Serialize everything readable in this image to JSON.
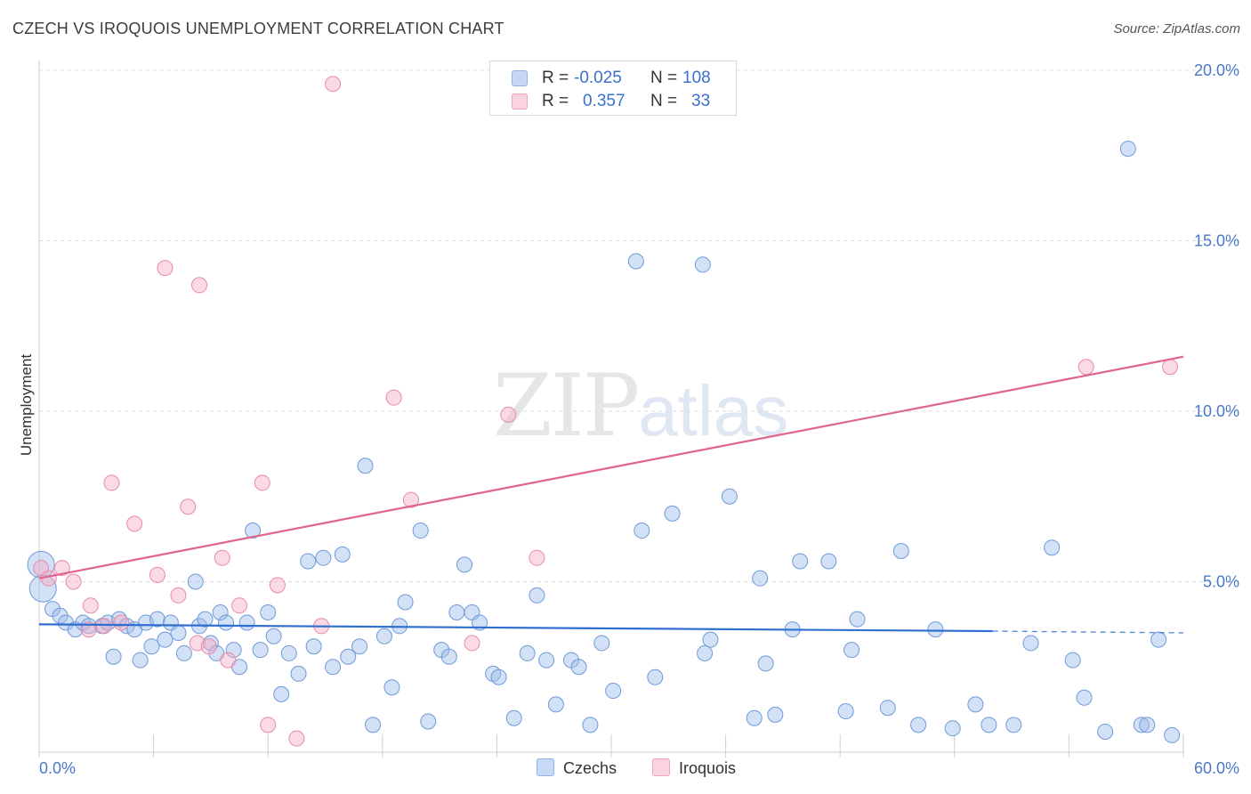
{
  "header": {
    "title": "CZECH VS IROQUOIS UNEMPLOYMENT CORRELATION CHART",
    "source": "Source: ZipAtlas.com"
  },
  "watermark": {
    "zip": "ZIP",
    "atlas": "atlas"
  },
  "legend_top": {
    "rows": [
      {
        "r_label": "R =",
        "r_value": "-0.025",
        "n_label": "N =",
        "n_value": "108",
        "color": "#9dbcea"
      },
      {
        "r_label": "R =",
        "r_value": "0.357",
        "n_label": "N =",
        "n_value": "33",
        "color": "#f5aec4"
      }
    ]
  },
  "legend_bottom": {
    "items": [
      {
        "label": "Czechs",
        "color": "#9dbcea"
      },
      {
        "label": "Iroquois",
        "color": "#f5aec4"
      }
    ]
  },
  "chart_data": {
    "type": "scatter",
    "title": "CZECH VS IROQUOIS UNEMPLOYMENT CORRELATION CHART",
    "xlabel": "",
    "ylabel": "Unemployment",
    "xlim": [
      0,
      60
    ],
    "ylim": [
      0,
      20
    ],
    "x_tick_labels": [
      "0.0%",
      "60.0%"
    ],
    "y_ticks": [
      5,
      10,
      15,
      20
    ],
    "y_tick_labels": [
      "5.0%",
      "10.0%",
      "15.0%",
      "20.0%"
    ],
    "grid": true,
    "legend_position": "top-center",
    "series": [
      {
        "name": "Czechs",
        "color": "#9dbcea",
        "stroke": "#6f9ad8",
        "line_color": "#2f6fcf",
        "trend": {
          "x0": 0,
          "y0": 3.75,
          "x1": 50,
          "y1": 3.55,
          "dash_to_x": 60,
          "dash_y": 3.5
        },
        "points": [
          [
            0.1,
            5.5
          ],
          [
            0.2,
            4.8
          ],
          [
            0.7,
            4.2
          ],
          [
            1.1,
            4.0
          ],
          [
            1.4,
            3.8
          ],
          [
            1.9,
            3.6
          ],
          [
            2.3,
            3.8
          ],
          [
            2.6,
            3.7
          ],
          [
            3.3,
            3.7
          ],
          [
            3.6,
            3.8
          ],
          [
            3.9,
            2.8
          ],
          [
            4.2,
            3.9
          ],
          [
            4.6,
            3.7
          ],
          [
            5.0,
            3.6
          ],
          [
            5.3,
            2.7
          ],
          [
            5.6,
            3.8
          ],
          [
            5.9,
            3.1
          ],
          [
            6.2,
            3.9
          ],
          [
            6.6,
            3.3
          ],
          [
            6.9,
            3.8
          ],
          [
            7.3,
            3.5
          ],
          [
            7.6,
            2.9
          ],
          [
            8.2,
            5.0
          ],
          [
            8.4,
            3.7
          ],
          [
            8.7,
            3.9
          ],
          [
            9.0,
            3.2
          ],
          [
            9.3,
            2.9
          ],
          [
            9.5,
            4.1
          ],
          [
            9.8,
            3.8
          ],
          [
            10.2,
            3.0
          ],
          [
            10.5,
            2.5
          ],
          [
            10.9,
            3.8
          ],
          [
            11.2,
            6.5
          ],
          [
            11.6,
            3.0
          ],
          [
            12.0,
            4.1
          ],
          [
            12.3,
            3.4
          ],
          [
            12.7,
            1.7
          ],
          [
            13.1,
            2.9
          ],
          [
            13.6,
            2.3
          ],
          [
            14.1,
            5.6
          ],
          [
            14.4,
            3.1
          ],
          [
            14.9,
            5.7
          ],
          [
            15.4,
            2.5
          ],
          [
            15.9,
            5.8
          ],
          [
            16.2,
            2.8
          ],
          [
            16.8,
            3.1
          ],
          [
            17.1,
            8.4
          ],
          [
            17.5,
            0.8
          ],
          [
            18.1,
            3.4
          ],
          [
            18.5,
            1.9
          ],
          [
            18.9,
            3.7
          ],
          [
            19.2,
            4.4
          ],
          [
            20.0,
            6.5
          ],
          [
            20.4,
            0.9
          ],
          [
            21.1,
            3.0
          ],
          [
            21.5,
            2.8
          ],
          [
            21.9,
            4.1
          ],
          [
            22.3,
            5.5
          ],
          [
            22.7,
            4.1
          ],
          [
            23.1,
            3.8
          ],
          [
            23.8,
            2.3
          ],
          [
            24.1,
            2.2
          ],
          [
            24.9,
            1.0
          ],
          [
            25.6,
            2.9
          ],
          [
            26.1,
            4.6
          ],
          [
            26.6,
            2.7
          ],
          [
            27.1,
            1.4
          ],
          [
            27.9,
            2.7
          ],
          [
            28.3,
            2.5
          ],
          [
            28.9,
            0.8
          ],
          [
            29.5,
            3.2
          ],
          [
            30.1,
            1.8
          ],
          [
            31.3,
            14.4
          ],
          [
            31.6,
            6.5
          ],
          [
            32.3,
            2.2
          ],
          [
            33.2,
            7.0
          ],
          [
            34.8,
            14.3
          ],
          [
            34.9,
            2.9
          ],
          [
            35.2,
            3.3
          ],
          [
            36.2,
            7.5
          ],
          [
            37.5,
            1.0
          ],
          [
            37.8,
            5.1
          ],
          [
            38.1,
            2.6
          ],
          [
            38.6,
            1.1
          ],
          [
            39.5,
            3.6
          ],
          [
            39.9,
            5.6
          ],
          [
            41.4,
            5.6
          ],
          [
            42.3,
            1.2
          ],
          [
            42.6,
            3.0
          ],
          [
            42.9,
            3.9
          ],
          [
            44.5,
            1.3
          ],
          [
            45.2,
            5.9
          ],
          [
            46.1,
            0.8
          ],
          [
            47.0,
            3.6
          ],
          [
            47.9,
            0.7
          ],
          [
            49.1,
            1.4
          ],
          [
            49.8,
            0.8
          ],
          [
            51.1,
            0.8
          ],
          [
            52.0,
            3.2
          ],
          [
            53.1,
            6.0
          ],
          [
            54.2,
            2.7
          ],
          [
            54.8,
            1.6
          ],
          [
            55.9,
            0.6
          ],
          [
            57.1,
            17.7
          ],
          [
            57.8,
            0.8
          ],
          [
            58.1,
            0.8
          ],
          [
            58.7,
            3.3
          ],
          [
            59.4,
            0.5
          ]
        ]
      },
      {
        "name": "Iroquois",
        "color": "#f5aec4",
        "stroke": "#e88aa8",
        "line_color": "#e0648e",
        "trend": {
          "x0": 0,
          "y0": 5.1,
          "x1": 60,
          "y1": 11.6
        },
        "points": [
          [
            0.1,
            5.4
          ],
          [
            0.5,
            5.1
          ],
          [
            1.2,
            5.4
          ],
          [
            1.8,
            5.0
          ],
          [
            2.6,
            3.6
          ],
          [
            2.7,
            4.3
          ],
          [
            3.4,
            3.7
          ],
          [
            3.8,
            7.9
          ],
          [
            4.3,
            3.8
          ],
          [
            5.0,
            6.7
          ],
          [
            6.2,
            5.2
          ],
          [
            6.6,
            14.2
          ],
          [
            7.3,
            4.6
          ],
          [
            7.8,
            7.2
          ],
          [
            8.3,
            3.2
          ],
          [
            8.4,
            13.7
          ],
          [
            9.6,
            5.7
          ],
          [
            9.9,
            2.7
          ],
          [
            10.5,
            4.3
          ],
          [
            11.7,
            7.9
          ],
          [
            12.0,
            0.8
          ],
          [
            12.5,
            4.9
          ],
          [
            13.5,
            0.4
          ],
          [
            14.8,
            3.7
          ],
          [
            15.4,
            19.6
          ],
          [
            18.6,
            10.4
          ],
          [
            19.5,
            7.4
          ],
          [
            22.7,
            3.2
          ],
          [
            24.6,
            9.9
          ],
          [
            26.1,
            5.7
          ],
          [
            54.9,
            11.3
          ],
          [
            59.3,
            11.3
          ],
          [
            8.9,
            3.1
          ]
        ]
      }
    ]
  }
}
